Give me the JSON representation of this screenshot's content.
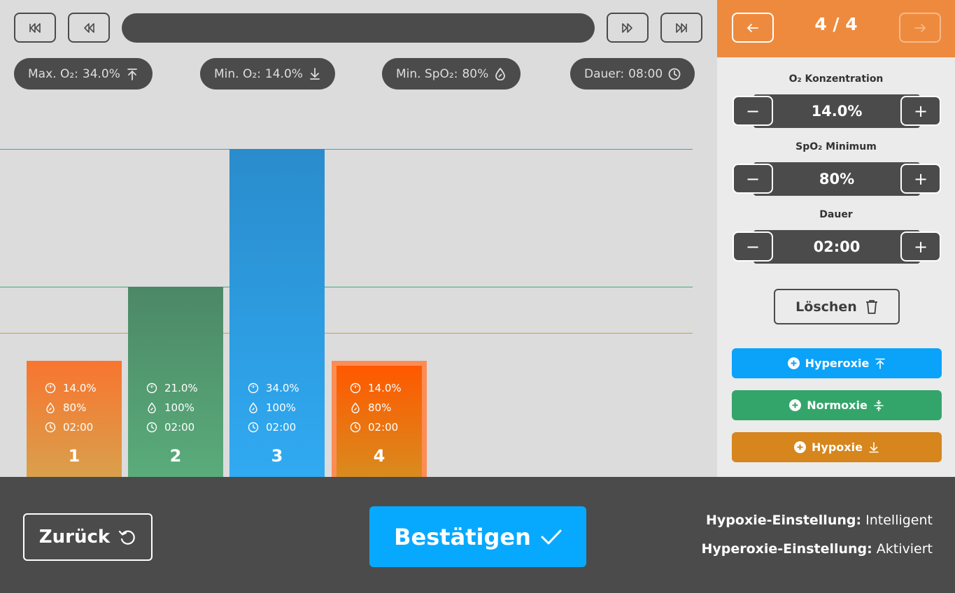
{
  "stats": {
    "max_o2": {
      "label": "Max. O₂:",
      "value": "34.0%",
      "icon": "arrow-up-to-line-icon"
    },
    "min_o2": {
      "label": "Min. O₂:",
      "value": "14.0%",
      "icon": "arrow-down-to-line-icon"
    },
    "min_spo2": {
      "label": "Min. SpO₂:",
      "value": "80%",
      "icon": "drop-icon"
    },
    "duration": {
      "label": "Dauer:",
      "value": "08:00",
      "icon": "clock-icon"
    }
  },
  "chart_data": {
    "type": "bar",
    "categories": [
      "1",
      "2",
      "3",
      "4"
    ],
    "values": [
      14.0,
      21.0,
      34.0,
      14.0
    ],
    "spo2": [
      "80%",
      "100%",
      "100%",
      "80%"
    ],
    "durations": [
      "02:00",
      "02:00",
      "02:00",
      "02:00"
    ],
    "o2_labels": [
      "14.0%",
      "21.0%",
      "34.0%",
      "14.0%"
    ],
    "selected_index": 3,
    "reference_lines": [
      {
        "name": "Hyperoxie",
        "value": 34.0,
        "color": "#2e9fe6"
      },
      {
        "name": "Normoxie",
        "value": 21.0,
        "color": "#45a873"
      },
      {
        "name": "Hypoxie",
        "value": 16.6,
        "color": "#d99a3a"
      }
    ],
    "colors": [
      "#f07f35",
      "#4f9169",
      "#2d9ee0",
      "#ff6d0a"
    ]
  },
  "side": {
    "pager": "4 / 4",
    "o2": {
      "label": "O₂ Konzentration",
      "value": "14.0%"
    },
    "spo2": {
      "label": "SpO₂ Minimum",
      "value": "80%"
    },
    "duration": {
      "label": "Dauer",
      "value": "02:00"
    },
    "minus": "−",
    "plus": "+",
    "delete_label": "Löschen",
    "add_hyperoxie": "Hyperoxie",
    "add_normoxie": "Normoxie",
    "add_hypoxie": "Hypoxie"
  },
  "colors": {
    "accent_orange": "#ee8a3e",
    "hyperoxie": "#0ba2f9",
    "normoxie": "#34a56a",
    "hypoxie": "#d6861c",
    "confirm": "#07a9ff",
    "dark": "#4b4b4b"
  },
  "footer": {
    "back_label": "Zurück",
    "confirm_label": "Bestätigen",
    "hypoxie_setting_label": "Hypoxie-Einstellung:",
    "hypoxie_setting_value": "Intelligent",
    "hyperoxie_setting_label": "Hyperoxie-Einstellung:",
    "hyperoxie_setting_value": "Aktiviert"
  }
}
